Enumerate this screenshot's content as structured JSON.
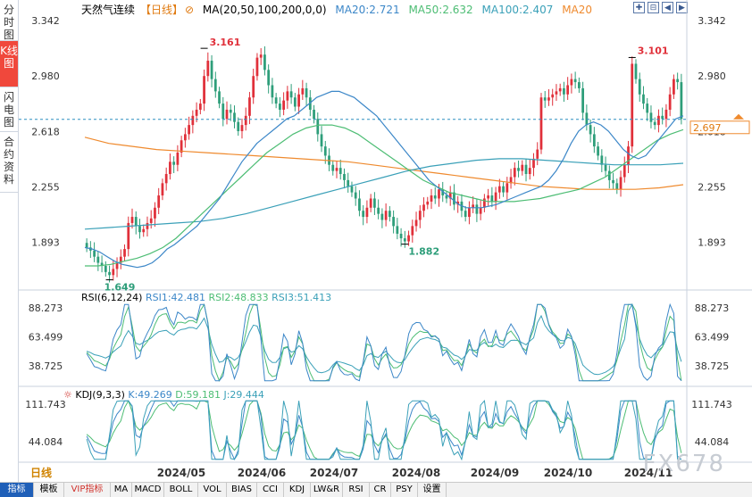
{
  "sidebar": [
    {
      "label": "分时图",
      "active": false
    },
    {
      "label": "K线图",
      "active": true
    },
    {
      "label": "闪电图",
      "active": false
    },
    {
      "label": "合约资料",
      "active": false
    }
  ],
  "header": {
    "title": "天然气连续",
    "period_tag": "【日线】",
    "ma_params": "MA(20,50,100,200,0,0)",
    "ma20": "MA20:2.721",
    "ma50": "MA50:2.632",
    "ma100": "MA100:2.407",
    "ma200": "MA20"
  },
  "colors": {
    "up": "#e0303a",
    "down": "#2e9e7a",
    "ma20": "#3c87c8",
    "ma50": "#4dbd74",
    "ma100": "#3aa0b8",
    "ma200": "#ef8a2e",
    "price_line": "#2b8fc0",
    "price_box": "#ef8a2e"
  },
  "price_axis": {
    "ticks": [
      "3.342",
      "2.980",
      "2.618",
      "2.255",
      "1.893"
    ],
    "current": "2.697"
  },
  "rsi": {
    "label": "RSI(6,12,24)",
    "rsi1": "RSI1:42.481",
    "rsi2": "RSI2:48.833",
    "rsi3": "RSI3:51.413",
    "ticks": [
      "88.273",
      "63.499",
      "38.725"
    ]
  },
  "kdj": {
    "label": "KDJ(9,3,3)",
    "k": "K:49.269",
    "d": "D:59.181",
    "j": "J:29.444",
    "ticks": [
      "111.743",
      "44.084"
    ]
  },
  "x_axis": [
    "2024/05",
    "2024/06",
    "2024/07",
    "2024/08",
    "2024/09",
    "2024/10",
    "2024/11"
  ],
  "period_label": "日线",
  "watermark": "FX678",
  "bottom_tabs": [
    {
      "label": "指标",
      "active": true
    },
    {
      "label": "模板"
    },
    {
      "label": "VIP指标",
      "vip": true
    },
    {
      "label": "MA"
    },
    {
      "label": "MACD"
    },
    {
      "label": "BOLL"
    },
    {
      "label": "VOL"
    },
    {
      "label": "BIAS"
    },
    {
      "label": "CCI"
    },
    {
      "label": "KDJ"
    },
    {
      "label": "LW&R"
    },
    {
      "label": "RSI"
    },
    {
      "label": "CR"
    },
    {
      "label": "PSY"
    },
    {
      "label": "设置"
    }
  ],
  "chart_data": {
    "type": "candlestick",
    "title": "天然气连续 日线",
    "ylim": [
      1.6,
      3.36
    ],
    "annotations": {
      "high1": "3.161",
      "low1": "1.649",
      "low2": "1.882",
      "high2": "3.101"
    },
    "close_series": [
      1.86,
      1.84,
      1.8,
      1.76,
      1.74,
      1.7,
      1.68,
      1.72,
      1.76,
      1.8,
      1.85,
      2.02,
      2.06,
      2.0,
      1.96,
      1.98,
      2.02,
      2.05,
      2.12,
      2.2,
      2.28,
      2.34,
      2.42,
      2.4,
      2.48,
      2.56,
      2.6,
      2.66,
      2.72,
      2.76,
      2.8,
      2.98,
      3.08,
      2.96,
      2.88,
      2.8,
      2.7,
      2.76,
      2.74,
      2.68,
      2.62,
      2.66,
      2.72,
      2.84,
      2.98,
      3.1,
      3.12,
      3.02,
      2.92,
      2.84,
      2.8,
      2.76,
      2.82,
      2.88,
      2.84,
      2.78,
      2.86,
      2.9,
      2.84,
      2.76,
      2.7,
      2.6,
      2.52,
      2.46,
      2.4,
      2.36,
      2.38,
      2.34,
      2.3,
      2.26,
      2.22,
      2.18,
      2.1,
      2.06,
      2.12,
      2.18,
      2.12,
      2.08,
      2.04,
      2.1,
      2.06,
      2.0,
      1.95,
      1.92,
      1.9,
      1.94,
      2.0,
      2.04,
      2.1,
      2.14,
      2.16,
      2.2,
      2.18,
      2.24,
      2.2,
      2.18,
      2.22,
      2.14,
      2.16,
      2.1,
      2.06,
      2.12,
      2.14,
      2.08,
      2.12,
      2.18,
      2.2,
      2.16,
      2.22,
      2.26,
      2.22,
      2.28,
      2.32,
      2.38,
      2.36,
      2.4,
      2.34,
      2.38,
      2.44,
      2.5,
      2.84,
      2.82,
      2.84,
      2.86,
      2.88,
      2.9,
      2.86,
      2.92,
      2.96,
      2.94,
      2.9,
      2.74,
      2.66,
      2.6,
      2.52,
      2.46,
      2.4,
      2.36,
      2.3,
      2.28,
      2.24,
      2.32,
      2.4,
      2.52,
      3.06,
      2.96,
      2.86,
      2.8,
      2.74,
      2.68,
      2.66,
      2.72,
      2.7,
      2.76,
      2.86,
      2.96,
      2.94,
      2.7
    ],
    "ma20": [
      1.86,
      1.85,
      1.83,
      1.8,
      1.77,
      1.75,
      1.74,
      1.73,
      1.74,
      1.76,
      1.8,
      1.85,
      1.88,
      1.92,
      1.96,
      2.0,
      2.06,
      2.12,
      2.18,
      2.26,
      2.34,
      2.42,
      2.48,
      2.54,
      2.58,
      2.62,
      2.66,
      2.7,
      2.72,
      2.76,
      2.8,
      2.84,
      2.86,
      2.88,
      2.88,
      2.86,
      2.84,
      2.8,
      2.76,
      2.72,
      2.66,
      2.6,
      2.54,
      2.48,
      2.42,
      2.36,
      2.3,
      2.26,
      2.22,
      2.18,
      2.14,
      2.12,
      2.12,
      2.12,
      2.13,
      2.14,
      2.16,
      2.18,
      2.2,
      2.22,
      2.24,
      2.26,
      2.3,
      2.36,
      2.44,
      2.54,
      2.62,
      2.66,
      2.68,
      2.66,
      2.62,
      2.56,
      2.5,
      2.46,
      2.44,
      2.46,
      2.52,
      2.58,
      2.64,
      2.7,
      2.72
    ],
    "ma50": [
      1.74,
      1.74,
      1.75,
      1.77,
      1.79,
      1.82,
      1.86,
      1.92,
      2.0,
      2.08,
      2.16,
      2.24,
      2.32,
      2.4,
      2.48,
      2.54,
      2.6,
      2.64,
      2.66,
      2.66,
      2.64,
      2.6,
      2.54,
      2.48,
      2.42,
      2.36,
      2.3,
      2.26,
      2.22,
      2.2,
      2.18,
      2.16,
      2.16,
      2.16,
      2.17,
      2.18,
      2.2,
      2.22,
      2.24,
      2.28,
      2.32,
      2.38,
      2.44,
      2.5,
      2.56,
      2.6,
      2.63
    ],
    "ma100": [
      1.98,
      1.99,
      2.0,
      2.01,
      2.02,
      2.03,
      2.05,
      2.08,
      2.12,
      2.16,
      2.2,
      2.24,
      2.28,
      2.32,
      2.36,
      2.39,
      2.41,
      2.43,
      2.44,
      2.44,
      2.43,
      2.42,
      2.41,
      2.4,
      2.4,
      2.4,
      2.41
    ],
    "ma200": [
      2.58,
      2.54,
      2.52,
      2.5,
      2.49,
      2.48,
      2.47,
      2.46,
      2.45,
      2.44,
      2.43,
      2.42,
      2.4,
      2.38,
      2.36,
      2.34,
      2.32,
      2.3,
      2.28,
      2.26,
      2.25,
      2.24,
      2.24,
      2.24,
      2.25,
      2.27
    ]
  }
}
